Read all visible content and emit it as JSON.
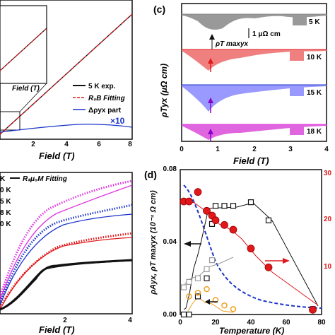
{
  "colors": {
    "black": "#111111",
    "red": "#e0181c",
    "blue": "#1a33c9",
    "magenta": "#e033e0",
    "gray": "#999999",
    "orange": "#f0a020",
    "pink": "#f08080",
    "lightblue": "#9999ff",
    "violet": "#e066e0"
  },
  "panel_a": {
    "xlabel": "Field (T)",
    "inset_xlabel": "Field (T)",
    "ticks_x": [
      "2",
      "4",
      "6",
      "8"
    ],
    "legend": [
      "5 K exp.",
      "R₀B Fitting",
      "Δρyx part"
    ],
    "multiplier": "×10"
  },
  "panel_b": {
    "xlabel": "Field (T)",
    "ticks_x": [
      "2",
      "4"
    ],
    "legend_title": "K",
    "legend_fit": "RₛμₒM Fitting",
    "temps": [
      "0 K",
      "5 K",
      "8 K",
      "0 K"
    ]
  },
  "panel_c": {
    "letter": "(c)",
    "xlabel": "Field (T)",
    "ylabel": "ρTyx (μΩ cm)",
    "scale_bar": "1 μΩ cm",
    "max_label": "ρT maxyx",
    "ticks_x": [
      "0",
      "1",
      "2",
      "3",
      "4"
    ],
    "temps": [
      "5 K",
      "10 K",
      "15 K",
      "18 K"
    ]
  },
  "panel_d": {
    "letter": "(d)",
    "xlabel": "Temperature (K)",
    "ylabel_left": "ρAyx, ρT maxyx (10⁻⁴ Ω cm)",
    "ticks_x": [
      "0",
      "20",
      "40",
      "60",
      "80"
    ],
    "ticks_y_left": [
      "0.00",
      "0.04",
      "0.08"
    ],
    "ticks_y_right": [
      "30",
      "20",
      "10"
    ]
  },
  "chart_data": [
    {
      "type": "line",
      "panel": "a",
      "xlabel": "Field (T)",
      "xlim": [
        0,
        8
      ],
      "series": [
        {
          "name": "5 K exp.",
          "x": [
            0,
            2,
            4,
            6,
            8
          ],
          "y": [
            0.0,
            0.25,
            0.5,
            0.75,
            1.0
          ]
        },
        {
          "name": "R₀B Fitting",
          "x": [
            0,
            2,
            4,
            6,
            8
          ],
          "y": [
            0.0,
            0.25,
            0.5,
            0.75,
            1.0
          ]
        },
        {
          "name": "Δρyx part",
          "x": [
            0,
            1,
            2,
            3,
            4,
            5,
            6,
            7,
            8
          ],
          "y": [
            0.04,
            0.06,
            0.07,
            0.075,
            0.078,
            0.08,
            0.082,
            0.078,
            0.07
          ]
        }
      ]
    },
    {
      "type": "line",
      "panel": "b",
      "xlabel": "Field (T)",
      "xlim": [
        0,
        4
      ],
      "series": [
        {
          "name": "0 K",
          "x": [
            0,
            0.5,
            1,
            1.5,
            2,
            3,
            4
          ],
          "y": [
            0.1,
            0.45,
            0.65,
            0.78,
            0.85,
            0.9,
            0.95
          ]
        },
        {
          "name": "5 K",
          "x": [
            0,
            0.5,
            1,
            1.5,
            2,
            3,
            4
          ],
          "y": [
            0.1,
            0.4,
            0.58,
            0.7,
            0.76,
            0.82,
            0.86
          ]
        },
        {
          "name": "8 K",
          "x": [
            0,
            0.5,
            1,
            1.5,
            2,
            3,
            4
          ],
          "y": [
            0.08,
            0.3,
            0.45,
            0.52,
            0.56,
            0.58,
            0.6
          ]
        },
        {
          "name": "0 K",
          "x": [
            0,
            0.5,
            1,
            1.5,
            2,
            3,
            4
          ],
          "y": [
            0.05,
            0.12,
            0.24,
            0.28,
            0.27,
            0.29,
            0.3
          ]
        }
      ]
    },
    {
      "type": "area",
      "panel": "c",
      "xlabel": "Field (T)",
      "ylabel": "ρTyx (μΩ cm)",
      "xlim": [
        0,
        4
      ],
      "series": [
        {
          "name": "5 K",
          "x": [
            0,
            0.4,
            0.8,
            1.2,
            1.6,
            2.0,
            2.4,
            2.8,
            3.2,
            3.6,
            4.0
          ],
          "y": [
            -0.1,
            -0.5,
            -1.1,
            -1.0,
            -0.4,
            -0.1,
            -0.05,
            -0.2,
            -0.05,
            -0.02,
            0
          ]
        },
        {
          "name": "10 K",
          "x": [
            0,
            0.4,
            0.8,
            1.2,
            1.6,
            2.0,
            2.4,
            2.8,
            3.2,
            3.6,
            4.0
          ],
          "y": [
            -0.1,
            -0.5,
            -1.0,
            -0.6,
            -0.3,
            -0.15,
            -0.1,
            -0.15,
            -0.05,
            -0.02,
            0
          ]
        },
        {
          "name": "15 K",
          "x": [
            0,
            0.4,
            0.8,
            1.2,
            1.6,
            2.0,
            2.4,
            2.8,
            3.2,
            3.6,
            4.0
          ],
          "y": [
            -0.1,
            -0.6,
            -1.2,
            -0.7,
            -0.4,
            -0.25,
            -0.2,
            -0.2,
            -0.1,
            -0.05,
            0
          ]
        },
        {
          "name": "18 K",
          "x": [
            0,
            0.4,
            0.8,
            1.2,
            1.6,
            2.0,
            2.4,
            2.8,
            3.2,
            3.6,
            4.0
          ],
          "y": [
            -0.05,
            -0.3,
            -0.7,
            -0.4,
            -0.3,
            -0.2,
            -0.15,
            -0.2,
            -0.1,
            -0.05,
            0
          ]
        }
      ]
    },
    {
      "type": "scatter",
      "panel": "d",
      "xlabel": "Temperature (K)",
      "xlim": [
        0,
        80
      ],
      "ylim": [
        0,
        0.08
      ],
      "series": [
        {
          "name": "black squares",
          "x": [
            2,
            5,
            10,
            15,
            18,
            20,
            25,
            30,
            40,
            50,
            75
          ],
          "y": [
            0.0,
            0.0,
            0.01,
            0.02,
            0.05,
            0.06,
            0.06,
            0.06,
            0.062,
            0.052,
            0.003
          ]
        },
        {
          "name": "gray squares",
          "x": [
            2,
            5,
            10,
            15,
            18
          ],
          "y": [
            0.015,
            0.018,
            0.02,
            0.025,
            0.03
          ]
        },
        {
          "name": "orange",
          "x": [
            5,
            10,
            15,
            20,
            25,
            30
          ],
          "y": [
            0.01,
            0.012,
            0.014,
            0.008,
            0.005,
            0.003
          ]
        },
        {
          "name": "red circles",
          "x": [
            2,
            5,
            10,
            15,
            18,
            20,
            25,
            30,
            40,
            50,
            75
          ],
          "y": [
            24,
            24,
            26,
            22,
            21,
            20,
            19,
            18,
            14,
            10,
            1
          ]
        }
      ]
    }
  ]
}
